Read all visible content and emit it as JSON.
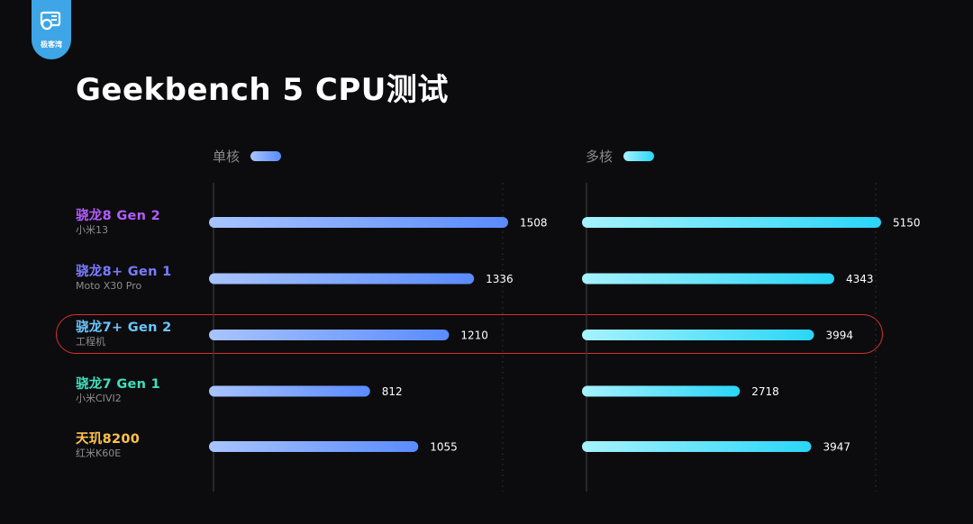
{
  "logo": {
    "text": "极客湾",
    "color": "#3ea6e6"
  },
  "title": "Geekbench 5 CPU测试",
  "legend": {
    "single": {
      "label": "单核",
      "color_from": "#a8c4ff",
      "color_to": "#5a8bff"
    },
    "multi": {
      "label": "多核",
      "color_from": "#a6f2ff",
      "color_to": "#2ad6f7"
    }
  },
  "chart_data": {
    "type": "bar",
    "orientation": "horizontal",
    "title": "Geekbench 5 CPU测试",
    "categories": [
      "骁龙8 Gen 2",
      "骁龙8+ Gen 1",
      "骁龙7+ Gen 2",
      "骁龙7 Gen 1",
      "天玑8200"
    ],
    "devices": [
      "小米13",
      "Moto X30 Pro",
      "工程机",
      "小米CIVI2",
      "红米K60E"
    ],
    "category_colors": [
      "#b45cff",
      "#7b7cff",
      "#6cc6ff",
      "#3fe0bf",
      "#ffc24a"
    ],
    "highlighted_category": "骁龙7+ Gen 2",
    "series": [
      {
        "name": "单核",
        "values": [
          1508,
          1336,
          1210,
          812,
          1055
        ],
        "color": "#5a8bff"
      },
      {
        "name": "多核",
        "values": [
          5150,
          4343,
          3994,
          2718,
          3947
        ],
        "color": "#2ad6f7"
      }
    ],
    "highlight_color": "#d8312f"
  }
}
